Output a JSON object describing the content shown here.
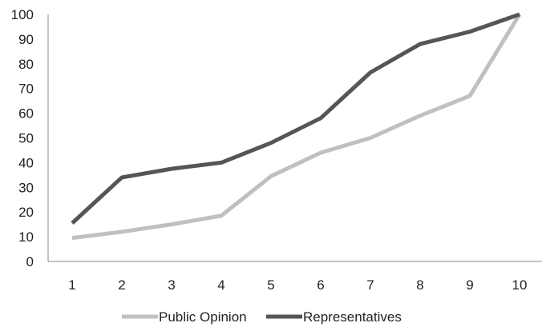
{
  "chart_data": {
    "type": "line",
    "x": [
      1,
      2,
      3,
      4,
      5,
      6,
      7,
      8,
      9,
      10
    ],
    "categories": [
      "1",
      "2",
      "3",
      "4",
      "5",
      "6",
      "7",
      "8",
      "9",
      "10"
    ],
    "series": [
      {
        "name": "Public Opinion",
        "color": "#c0c0c0",
        "values": [
          9.5,
          12,
          15,
          18.5,
          34.5,
          44,
          50,
          59,
          67,
          100
        ]
      },
      {
        "name": "Representatives",
        "color": "#555555",
        "values": [
          15.5,
          34,
          37.5,
          40,
          48,
          58,
          76.5,
          88,
          93,
          100
        ]
      }
    ],
    "title": "",
    "xlabel": "",
    "ylabel": "",
    "ylim": [
      0,
      100
    ],
    "yticks": [
      "0",
      "10",
      "20",
      "30",
      "40",
      "50",
      "60",
      "70",
      "80",
      "90",
      "100"
    ],
    "grid": false,
    "legend_position": "bottom"
  }
}
